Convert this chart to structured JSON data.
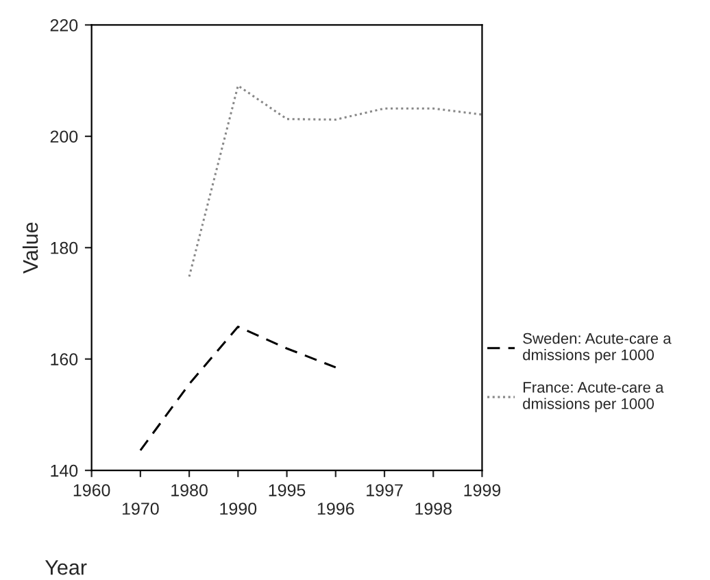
{
  "chart_data": {
    "type": "line",
    "xlabel": "Year",
    "ylabel": "Value",
    "categories": [
      "1960",
      "1970",
      "1980",
      "1990",
      "1995",
      "1996",
      "1997",
      "1998",
      "1999"
    ],
    "series": [
      {
        "name": "Sweden: Acute-care a\ndmissions per 1000",
        "color": "#000000",
        "line_style": "dashed",
        "values": [
          null,
          143.6,
          155.5,
          165.8,
          161.9,
          158.5,
          null,
          null,
          null
        ]
      },
      {
        "name": "France: Acute-care a\ndmissions per 1000",
        "color": "#888888",
        "line_style": "dotted",
        "values": [
          null,
          null,
          174.8,
          209.1,
          203.1,
          203,
          205,
          205,
          203.9
        ]
      }
    ],
    "ylim": [
      140,
      220
    ],
    "yticks": [
      140,
      160,
      180,
      200,
      220
    ],
    "grid": false,
    "legend": "right",
    "marker": "none"
  }
}
